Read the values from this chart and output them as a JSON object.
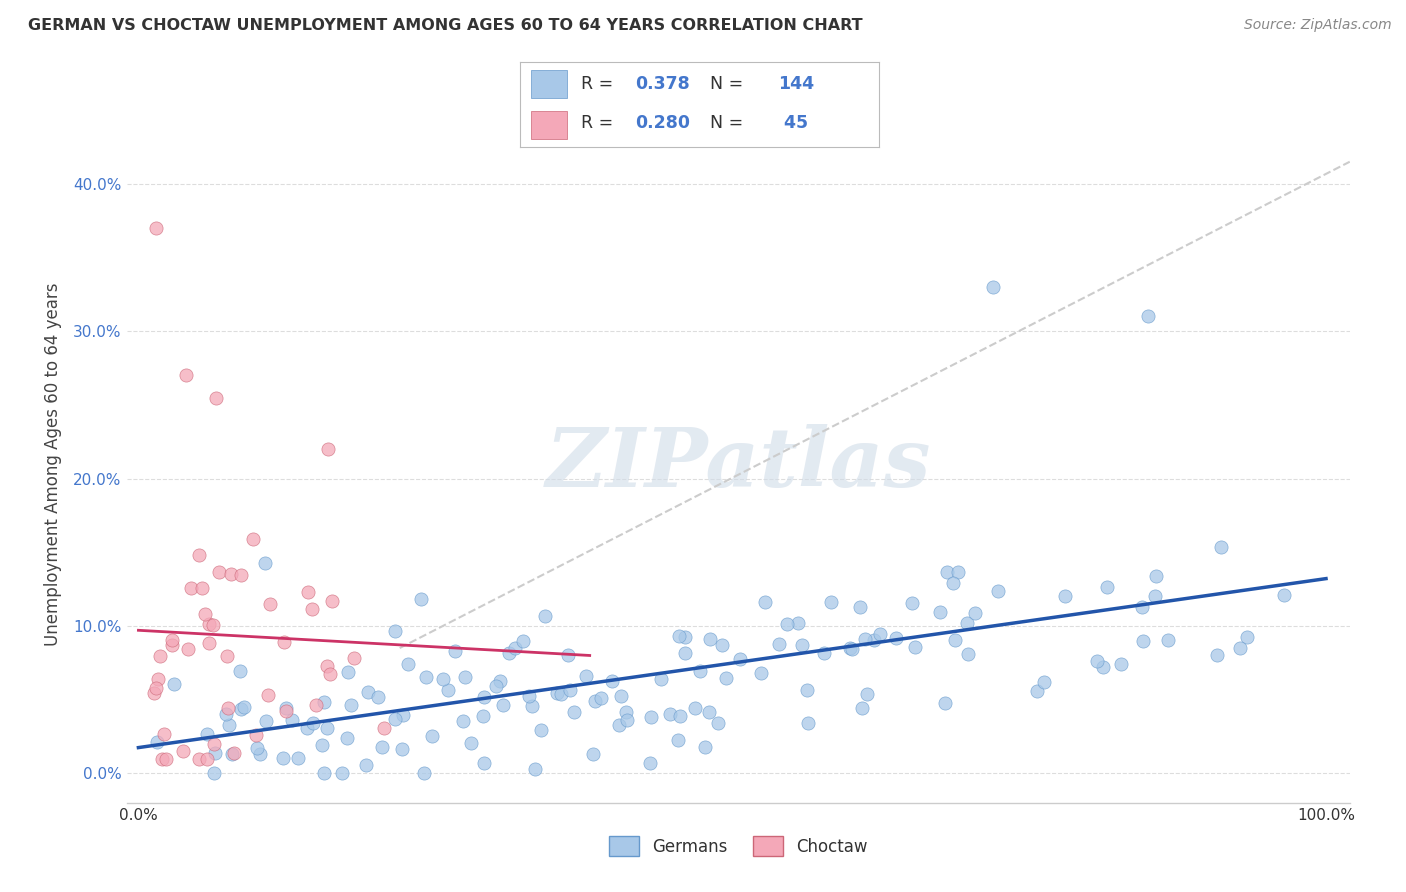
{
  "title": "GERMAN VS CHOCTAW UNEMPLOYMENT AMONG AGES 60 TO 64 YEARS CORRELATION CHART",
  "source": "Source: ZipAtlas.com",
  "ylabel": "Unemployment Among Ages 60 to 64 years",
  "german_color": "#a8c8e8",
  "german_edge_color": "#6699cc",
  "choctaw_color": "#f4a8b8",
  "choctaw_edge_color": "#cc6677",
  "german_line_color": "#2255aa",
  "choctaw_line_color": "#cc3366",
  "dash_line_color": "#cccccc",
  "watermark_color": "#d0dce8",
  "legend_value_color": "#4477cc",
  "legend_label_color": "#333333",
  "legend_german_R": "0.378",
  "legend_german_N": "144",
  "legend_choctaw_R": "0.280",
  "legend_choctaw_N": "45",
  "background_color": "#ffffff",
  "grid_color": "#dddddd",
  "ytick_color": "#4477cc",
  "seed": 12345
}
